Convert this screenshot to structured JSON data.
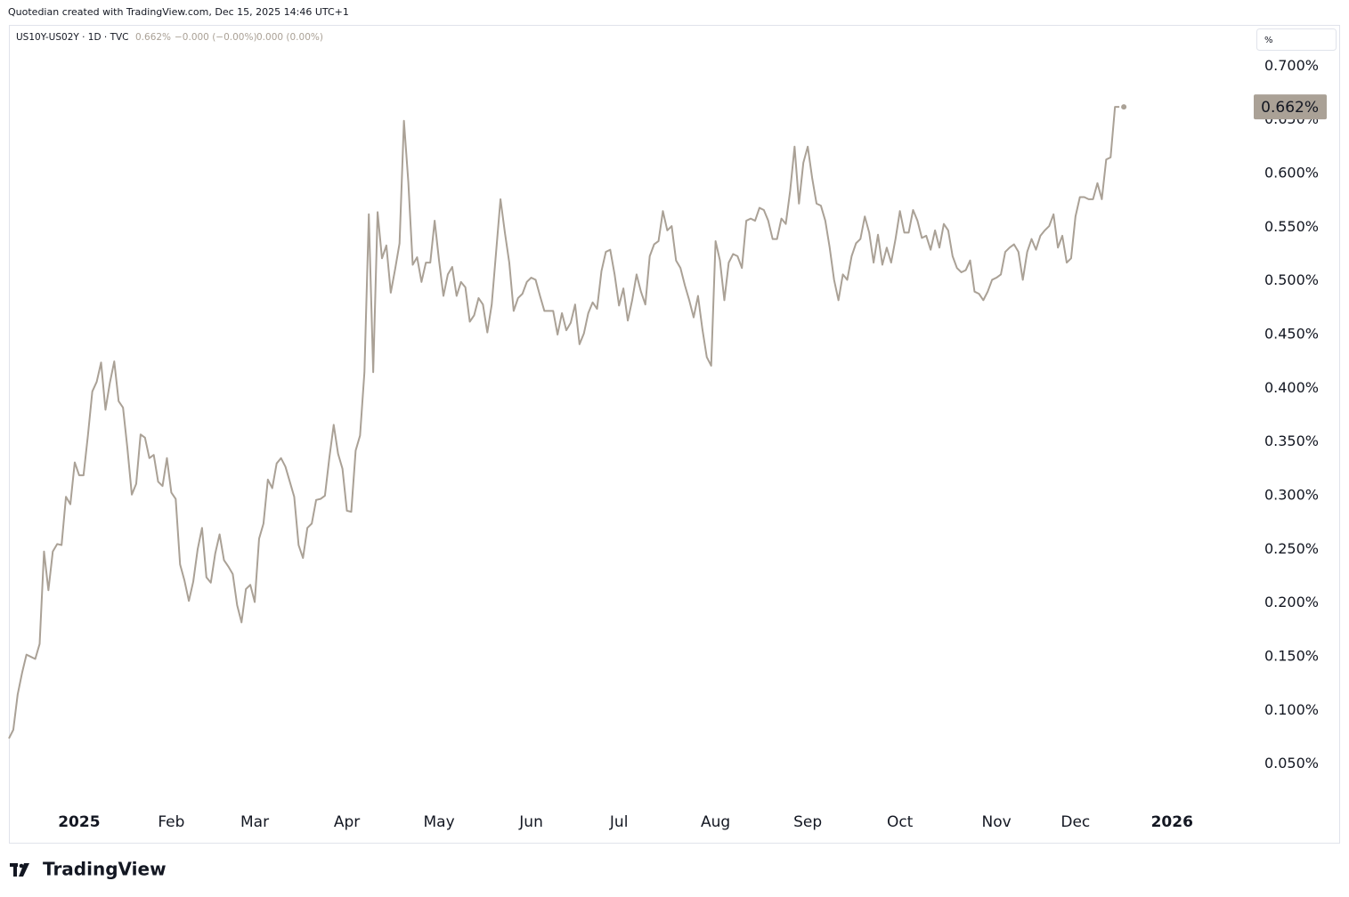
{
  "chart_data": {
    "type": "line",
    "attribution": "Quotedian created with TradingView.com, Dec 15, 2025 14:46 UTC+1",
    "symbol": "US10Y-US02Y · 1D · TVC",
    "legend_values": [
      "0.662%",
      "−0.000 (−0.00%)",
      "0.000 (0.00%)"
    ],
    "unit": "%",
    "logo": "TradingView",
    "last_value_label": "0.662%",
    "series": [
      {
        "name": "US10Y-US02Y",
        "color": "#aaa196",
        "values": [
          0.074,
          0.082,
          0.115,
          0.135,
          0.152,
          0.15,
          0.148,
          0.162,
          0.248,
          0.212,
          0.248,
          0.255,
          0.254,
          0.299,
          0.292,
          0.331,
          0.319,
          0.319,
          0.356,
          0.397,
          0.406,
          0.424,
          0.38,
          0.405,
          0.425,
          0.388,
          0.382,
          0.344,
          0.301,
          0.311,
          0.357,
          0.354,
          0.335,
          0.338,
          0.313,
          0.309,
          0.335,
          0.303,
          0.297,
          0.236,
          0.221,
          0.202,
          0.22,
          0.25,
          0.27,
          0.224,
          0.219,
          0.246,
          0.264,
          0.24,
          0.234,
          0.227,
          0.198,
          0.182,
          0.213,
          0.217,
          0.201,
          0.26,
          0.274,
          0.315,
          0.307,
          0.33,
          0.335,
          0.327,
          0.313,
          0.299,
          0.254,
          0.242,
          0.27,
          0.274,
          0.296,
          0.297,
          0.3,
          0.335,
          0.366,
          0.339,
          0.325,
          0.286,
          0.285,
          0.342,
          0.356,
          0.415,
          0.562,
          0.415,
          0.564,
          0.521,
          0.533,
          0.489,
          0.511,
          0.535,
          0.649,
          0.592,
          0.515,
          0.522,
          0.499,
          0.517,
          0.517,
          0.556,
          0.519,
          0.486,
          0.506,
          0.513,
          0.486,
          0.499,
          0.494,
          0.462,
          0.468,
          0.484,
          0.478,
          0.452,
          0.478,
          0.527,
          0.576,
          0.545,
          0.517,
          0.472,
          0.484,
          0.488,
          0.499,
          0.503,
          0.501,
          0.486,
          0.472,
          0.472,
          0.472,
          0.45,
          0.47,
          0.454,
          0.461,
          0.478,
          0.441,
          0.451,
          0.47,
          0.48,
          0.474,
          0.509,
          0.527,
          0.529,
          0.506,
          0.477,
          0.493,
          0.463,
          0.482,
          0.506,
          0.49,
          0.478,
          0.523,
          0.534,
          0.537,
          0.565,
          0.547,
          0.551,
          0.519,
          0.512,
          0.496,
          0.482,
          0.466,
          0.486,
          0.455,
          0.429,
          0.421,
          0.537,
          0.519,
          0.482,
          0.517,
          0.525,
          0.523,
          0.512,
          0.556,
          0.558,
          0.556,
          0.568,
          0.566,
          0.556,
          0.539,
          0.539,
          0.558,
          0.553,
          0.584,
          0.625,
          0.572,
          0.61,
          0.625,
          0.596,
          0.572,
          0.57,
          0.556,
          0.531,
          0.501,
          0.482,
          0.506,
          0.501,
          0.523,
          0.535,
          0.539,
          0.56,
          0.545,
          0.517,
          0.543,
          0.515,
          0.531,
          0.517,
          0.539,
          0.565,
          0.545,
          0.545,
          0.566,
          0.556,
          0.54,
          0.542,
          0.529,
          0.547,
          0.531,
          0.553,
          0.547,
          0.523,
          0.512,
          0.508,
          0.51,
          0.519,
          0.49,
          0.488,
          0.482,
          0.49,
          0.501,
          0.503,
          0.506,
          0.527,
          0.531,
          0.534,
          0.527,
          0.501,
          0.527,
          0.539,
          0.529,
          0.542,
          0.547,
          0.551,
          0.562,
          0.531,
          0.542,
          0.517,
          0.521,
          0.56,
          0.578,
          0.578,
          0.576,
          0.576,
          0.591,
          0.576,
          0.613,
          0.615,
          0.662,
          0.662
        ]
      }
    ],
    "xlim": [
      0,
      283
    ],
    "xticks": [
      {
        "value": 16,
        "label": "2025"
      },
      {
        "value": 37,
        "label": "Feb"
      },
      {
        "value": 56,
        "label": "Mar"
      },
      {
        "value": 77,
        "label": "Apr"
      },
      {
        "value": 98,
        "label": "May"
      },
      {
        "value": 119,
        "label": "Jun"
      },
      {
        "value": 139,
        "label": "Jul"
      },
      {
        "value": 161,
        "label": "Aug"
      },
      {
        "value": 182,
        "label": "Sep"
      },
      {
        "value": 203,
        "label": "Oct"
      },
      {
        "value": 225,
        "label": "Nov"
      },
      {
        "value": 243,
        "label": "Dec"
      },
      {
        "value": 265,
        "label": "2026"
      }
    ],
    "ylim": [
      0.0125,
      0.7375
    ],
    "yticks": [
      {
        "value": 0.05,
        "label": "0.050%"
      },
      {
        "value": 0.1,
        "label": "0.100%"
      },
      {
        "value": 0.15,
        "label": "0.150%"
      },
      {
        "value": 0.2,
        "label": "0.200%"
      },
      {
        "value": 0.25,
        "label": "0.250%"
      },
      {
        "value": 0.3,
        "label": "0.300%"
      },
      {
        "value": 0.35,
        "label": "0.350%"
      },
      {
        "value": 0.4,
        "label": "0.400%"
      },
      {
        "value": 0.45,
        "label": "0.450%"
      },
      {
        "value": 0.5,
        "label": "0.500%"
      },
      {
        "value": 0.55,
        "label": "0.550%"
      },
      {
        "value": 0.6,
        "label": "0.600%"
      },
      {
        "value": 0.65,
        "label": "0.650%"
      },
      {
        "value": 0.7,
        "label": "0.700%"
      }
    ]
  }
}
